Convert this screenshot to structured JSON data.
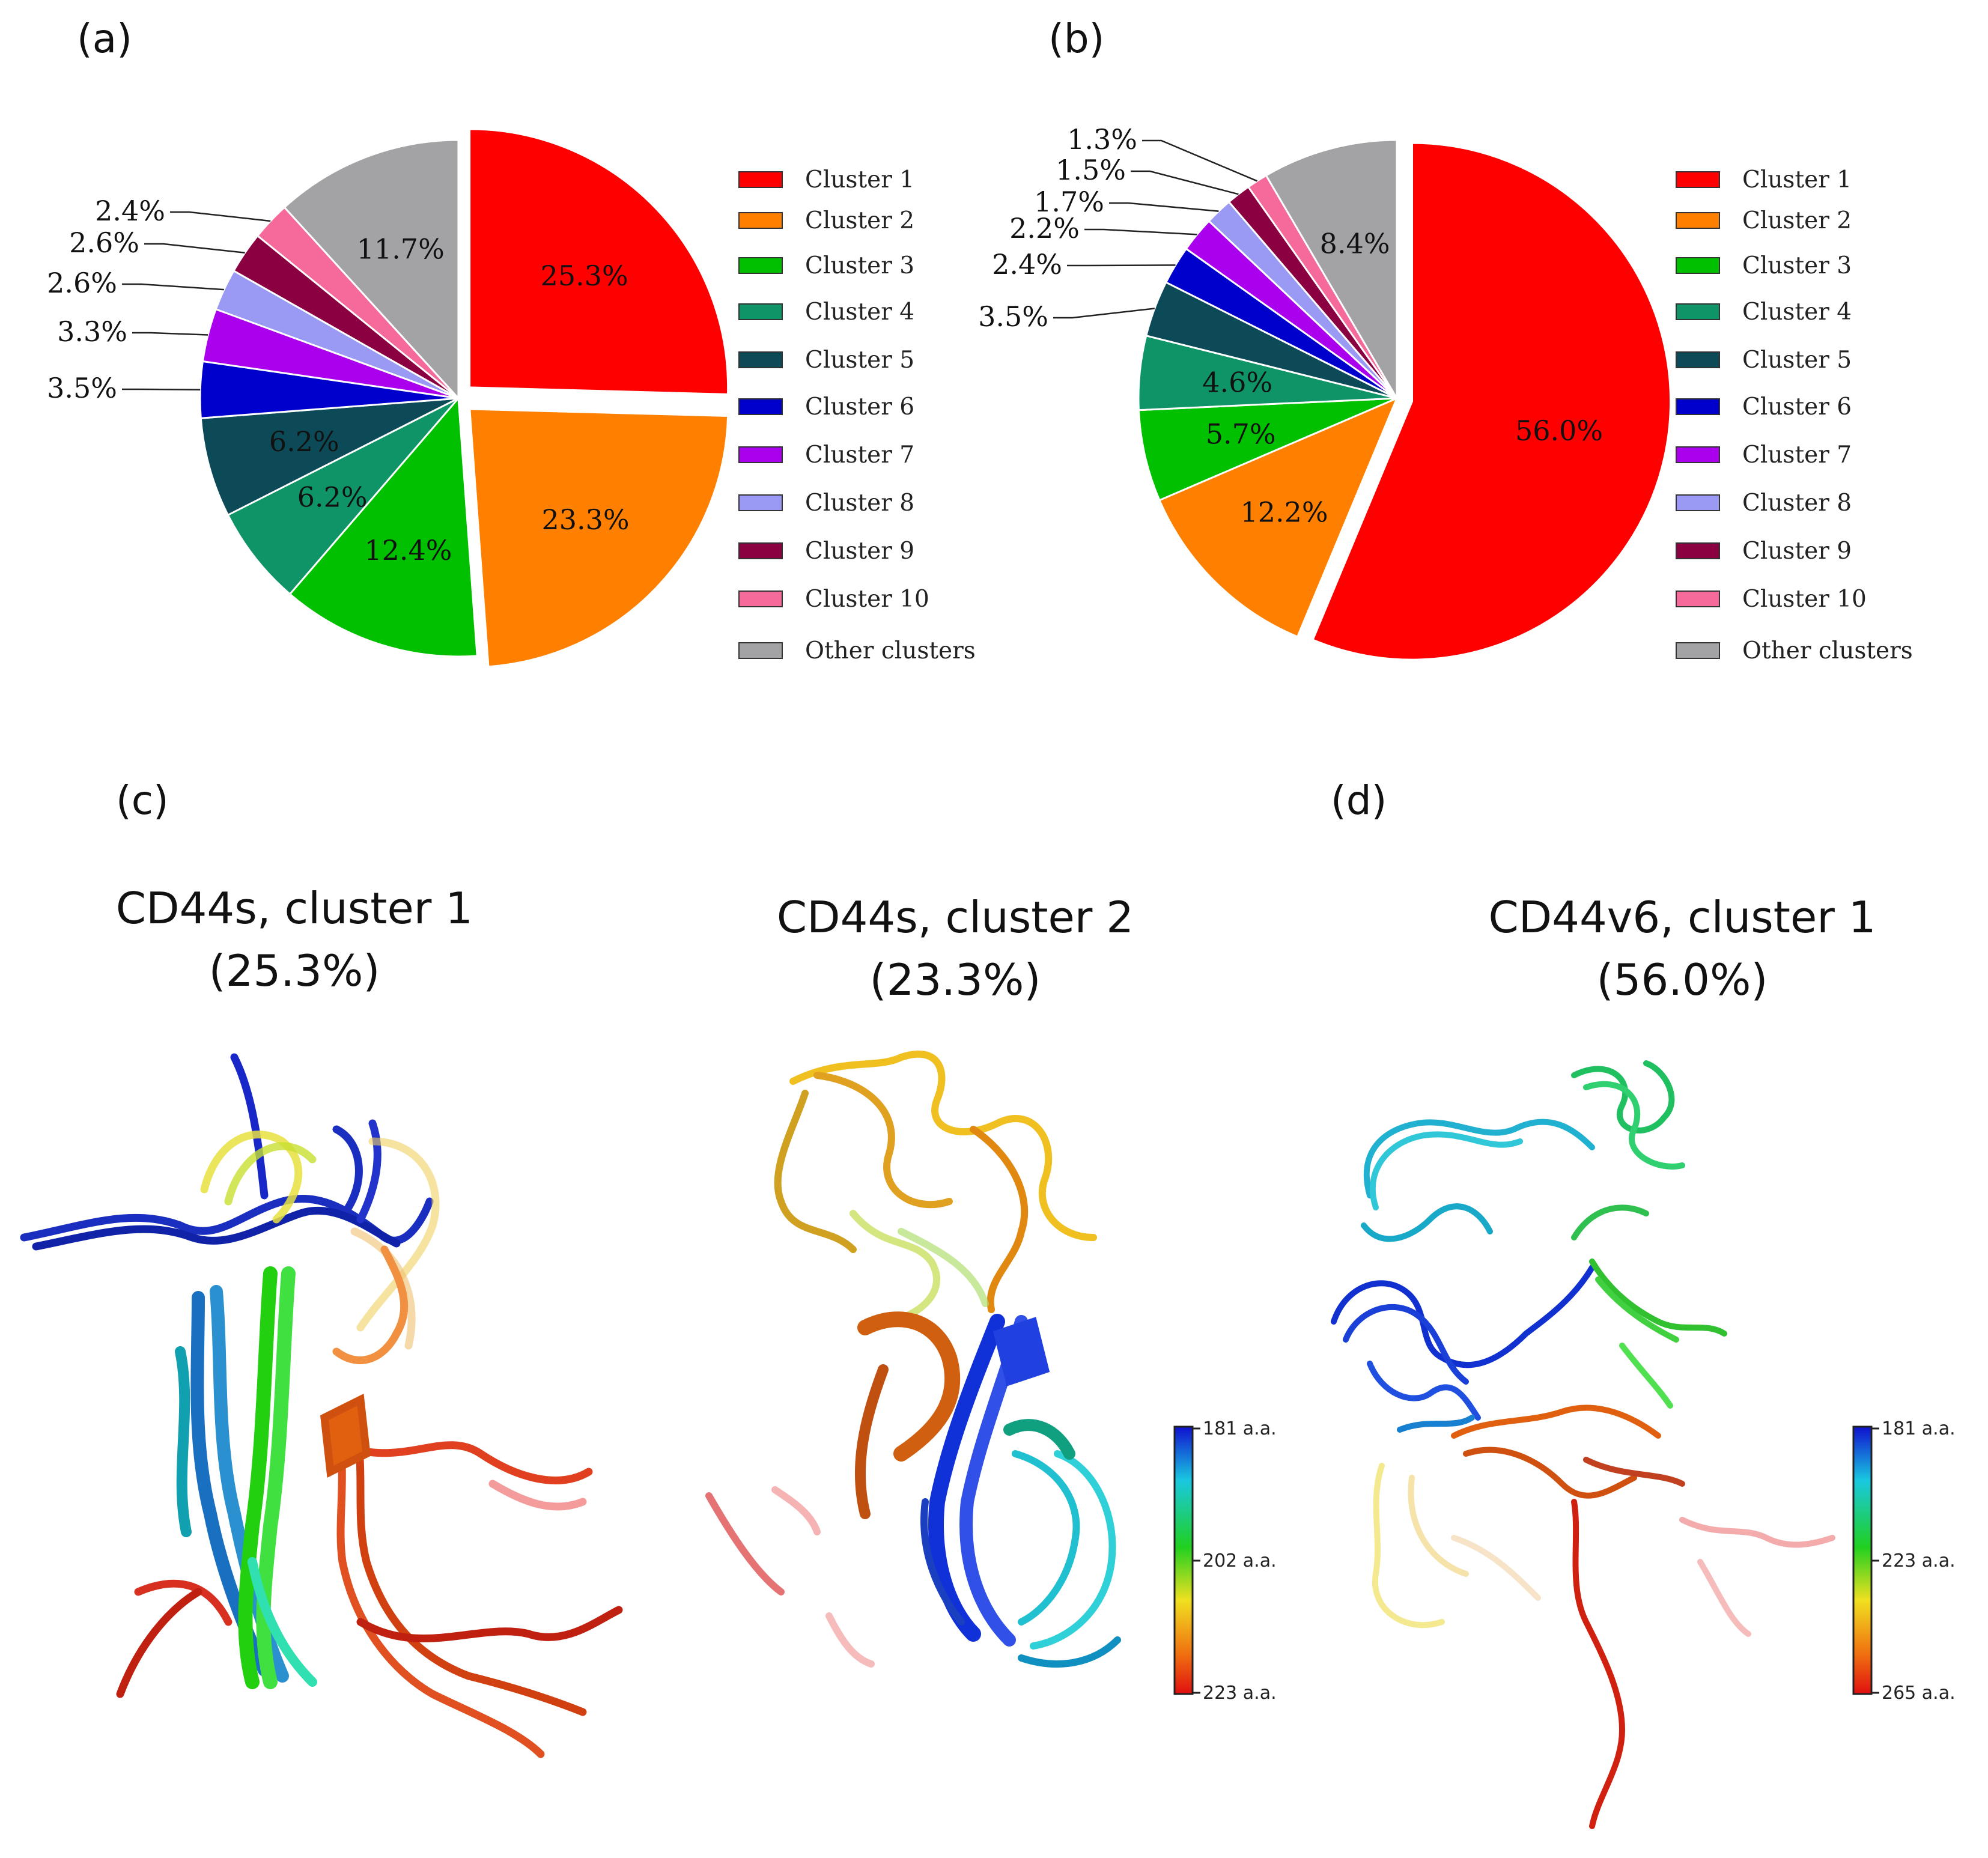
{
  "panels": {
    "a": "(a)",
    "b": "(b)",
    "c": "(c)",
    "d": "(d)"
  },
  "chart_data": [
    {
      "type": "pie",
      "panel": "(a)",
      "categories": [
        "Cluster 1",
        "Cluster 2",
        "Cluster 3",
        "Cluster 4",
        "Cluster 5",
        "Cluster 6",
        "Cluster 7",
        "Cluster 8",
        "Cluster 9",
        "Cluster 10",
        "Other clusters"
      ],
      "values": [
        25.3,
        23.3,
        12.4,
        6.2,
        6.2,
        3.5,
        3.3,
        2.6,
        2.6,
        2.4,
        11.7
      ],
      "labels": [
        "25.3%",
        "23.3%",
        "12.4%",
        "6.2%",
        "6.2%",
        "3.5%",
        "3.3%",
        "2.6%",
        "2.6%",
        "2.4%",
        "11.7%"
      ],
      "exploded": [
        "Cluster 1",
        "Cluster 2"
      ],
      "legend_position": "right"
    },
    {
      "type": "pie",
      "panel": "(b)",
      "categories": [
        "Cluster 1",
        "Cluster 2",
        "Cluster 3",
        "Cluster 4",
        "Cluster 5",
        "Cluster 6",
        "Cluster 7",
        "Cluster 8",
        "Cluster 9",
        "Cluster 10",
        "Other clusters"
      ],
      "values": [
        56.0,
        12.2,
        5.7,
        4.6,
        3.5,
        2.4,
        2.2,
        1.7,
        1.5,
        1.3,
        8.4
      ],
      "labels": [
        "56.0%",
        "12.2%",
        "5.7%",
        "4.6%",
        "3.5%",
        "2.4%",
        "2.2%",
        "1.7%",
        "1.5%",
        "1.3%",
        "8.4%"
      ],
      "exploded": [
        "Cluster 1"
      ],
      "legend_position": "right"
    }
  ],
  "colors": [
    "#ff0000",
    "#ff8000",
    "#00c000",
    "#0f9468",
    "#0d4a58",
    "#0000cc",
    "#aa00ee",
    "#9a9af5",
    "#8a0040",
    "#f56a9b",
    "#a3a3a6"
  ],
  "structures": [
    {
      "line1": "CD44s, cluster 1",
      "line2": "(25.3%)"
    },
    {
      "line1": "CD44s, cluster 2",
      "line2": "(23.3%)"
    },
    {
      "line1": "CD44v6, cluster 1",
      "line2": "(56.0%)"
    }
  ],
  "colorbars": [
    {
      "top": "181 a.a.",
      "mid": "202 a.a.",
      "bottom": "223 a.a."
    },
    {
      "top": "181 a.a.",
      "mid": "223 a.a.",
      "bottom": "265 a.a."
    }
  ]
}
